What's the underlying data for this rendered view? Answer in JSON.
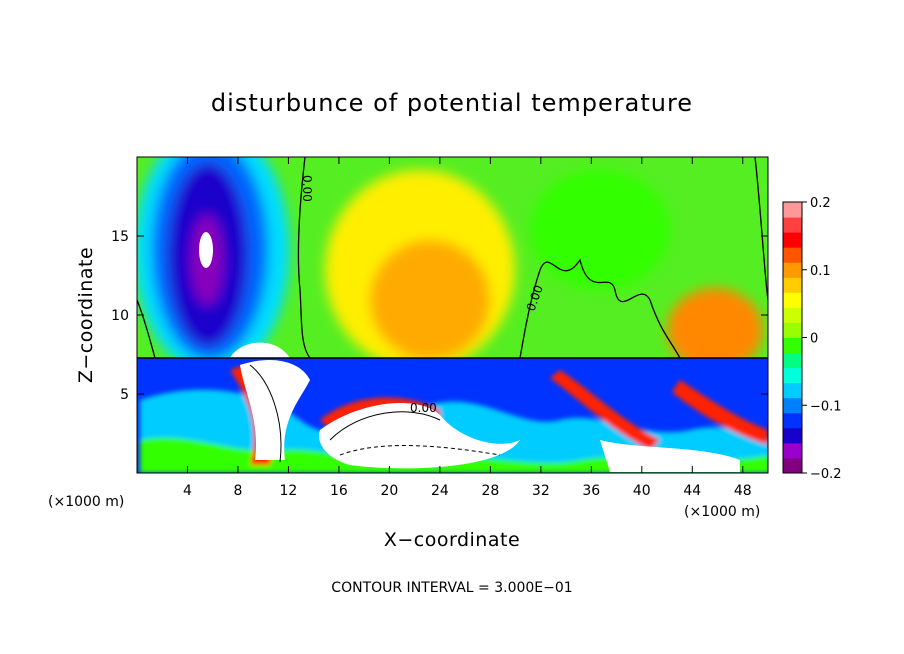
{
  "chart_data": {
    "type": "heatmap",
    "title": "disturbunce of potential temperature",
    "xlabel": "X−coordinate",
    "ylabel": "Z−coordinate",
    "x_unit": "(×1000 m)",
    "x_unit_right": "(×1000 m)",
    "xlim": [
      0,
      50
    ],
    "ylim": [
      0,
      20
    ],
    "x_ticks": [
      4,
      8,
      12,
      16,
      20,
      24,
      28,
      32,
      36,
      40,
      44,
      48
    ],
    "y_ticks": [
      5,
      10,
      15
    ],
    "colorbar": {
      "range": [
        -0.2,
        0.2
      ],
      "ticks": [
        "0.2",
        "0.1",
        "0",
        "−0.1",
        "−0.2"
      ],
      "colors": [
        "#800080",
        "#9900cc",
        "#1a00cc",
        "#0033ff",
        "#0080ff",
        "#00ccff",
        "#00ffdd",
        "#00ff80",
        "#33ff00",
        "#99ff00",
        "#ccff00",
        "#ffff00",
        "#ffcc00",
        "#ff9900",
        "#ff5500",
        "#ff0000",
        "#ff4040",
        "#ff9999"
      ]
    },
    "contour_labels": [
      "0.00",
      "0.00",
      "0.00"
    ],
    "annotation": "CONTOUR INTERVAL = 3.000E−01"
  }
}
